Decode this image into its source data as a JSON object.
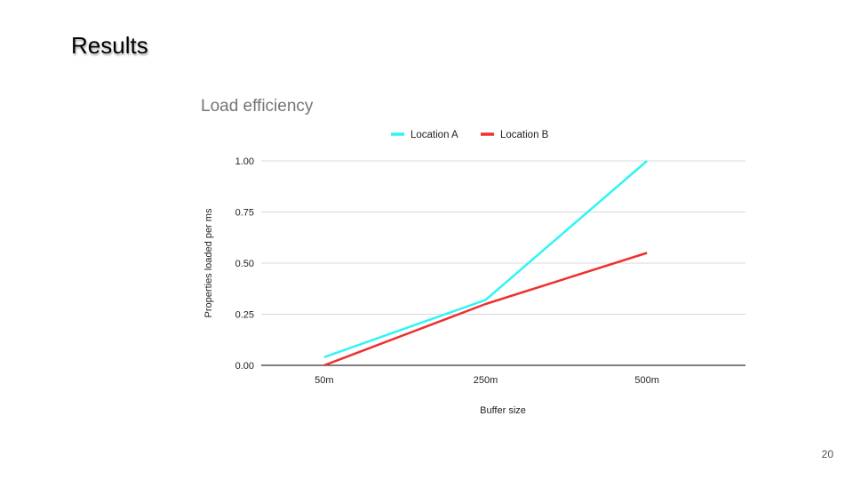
{
  "slide": {
    "title": "Results",
    "page_number": "20"
  },
  "chart_data": {
    "type": "line",
    "title": "Load efficiency",
    "xlabel": "Buffer size",
    "ylabel": "Properties loaded per ms",
    "categories": [
      "50m",
      "250m",
      "500m"
    ],
    "ylim": [
      0,
      1
    ],
    "yticks": [
      "0.00",
      "0.25",
      "0.50",
      "0.75",
      "1.00"
    ],
    "legend_position": "top",
    "grid": true,
    "series": [
      {
        "name": "Location A",
        "color": "#2ef5f5",
        "values": [
          0.04,
          0.32,
          1.0
        ]
      },
      {
        "name": "Location B",
        "color": "#f03030",
        "values": [
          0.0,
          0.3,
          0.55
        ]
      }
    ]
  }
}
